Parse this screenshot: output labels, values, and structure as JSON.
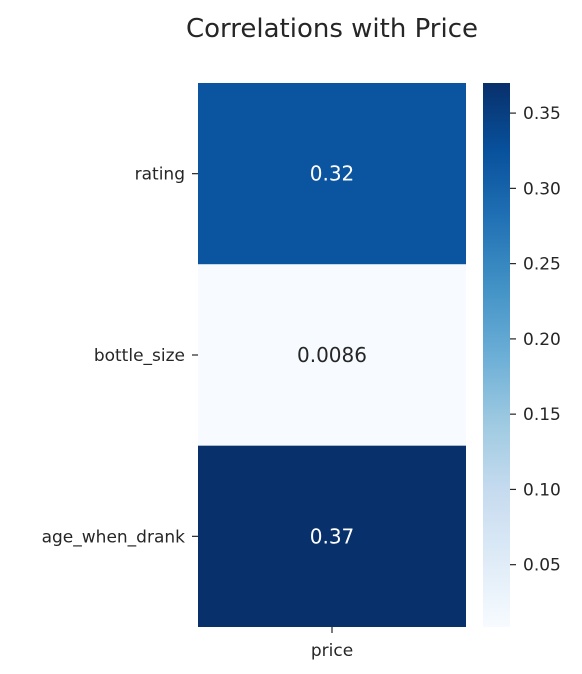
{
  "chart_data": {
    "type": "heatmap",
    "title": "Correlations with Price",
    "rows": [
      "rating",
      "bottle_size",
      "age_when_drank"
    ],
    "columns": [
      "price"
    ],
    "values": [
      [
        0.32
      ],
      [
        0.0086
      ],
      [
        0.37
      ]
    ],
    "annotations": [
      "0.32",
      "0.0086",
      "0.37"
    ],
    "colormap": "Blues",
    "vmin": 0.0086,
    "vmax": 0.37,
    "colorbar": {
      "ticks": [
        0.05,
        0.1,
        0.15,
        0.2,
        0.25,
        0.3,
        0.35
      ],
      "tick_labels": [
        "0.05",
        "0.10",
        "0.15",
        "0.20",
        "0.25",
        "0.30",
        "0.35"
      ]
    },
    "xlabel": "",
    "ylabel": ""
  }
}
